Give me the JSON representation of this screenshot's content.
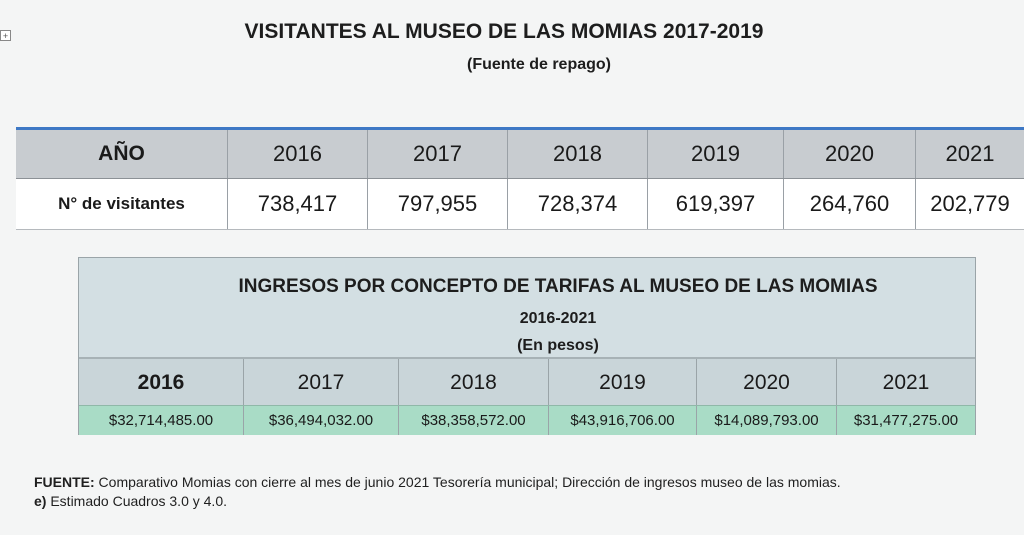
{
  "table1": {
    "title": "VISITANTES AL MUSEO DE LAS MOMIAS 2017-2019",
    "subtitle": "(Fuente de repago)",
    "header_label": "AÑO",
    "years": [
      "2016",
      "2017",
      "2018",
      "2019",
      "2020",
      "2021"
    ],
    "row_label": "N° de visitantes",
    "visitors": [
      "738,417",
      "797,955",
      "728,374",
      "619,397",
      "264,760",
      "202,779"
    ]
  },
  "table2": {
    "title": "INGRESOS POR CONCEPTO DE TARIFAS AL MUSEO DE LAS MOMIAS",
    "subtitle1": "2016-2021",
    "subtitle2": "(En pesos)",
    "years": [
      "2016",
      "2017",
      "2018",
      "2019",
      "2020",
      "2021"
    ],
    "income": [
      "$32,714,485.00",
      "$36,494,032.00",
      "$38,358,572.00",
      "$43,916,706.00",
      "$14,089,793.00",
      "$31,477,275.00"
    ]
  },
  "footer": {
    "source_label": "FUENTE:",
    "source_text": " Comparativo Momias con cierre al mes de junio 2021 Tesorería municipal; Dirección de ingresos museo de las momias.",
    "estimate_label": "e)",
    "estimate_text": " Estimado Cuadros 3.0 y 4.0."
  }
}
